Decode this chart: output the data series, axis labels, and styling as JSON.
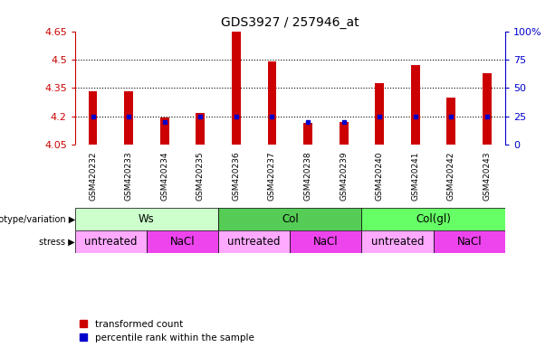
{
  "title": "GDS3927 / 257946_at",
  "samples": [
    "GSM420232",
    "GSM420233",
    "GSM420234",
    "GSM420235",
    "GSM420236",
    "GSM420237",
    "GSM420238",
    "GSM420239",
    "GSM420240",
    "GSM420241",
    "GSM420242",
    "GSM420243"
  ],
  "red_values": [
    4.335,
    4.335,
    4.195,
    4.22,
    4.65,
    4.49,
    4.168,
    4.172,
    4.375,
    4.47,
    4.3,
    4.43
  ],
  "blue_values": [
    25,
    25,
    20,
    25,
    25,
    25,
    20,
    20,
    25,
    25,
    25,
    25
  ],
  "ylim": [
    4.05,
    4.65
  ],
  "y_ticks": [
    4.05,
    4.2,
    4.35,
    4.5,
    4.65
  ],
  "right_tick_positions": [
    4.05,
    4.2,
    4.35,
    4.5,
    4.65
  ],
  "right_labels": [
    "0",
    "25",
    "50",
    "75",
    "100%"
  ],
  "dotted_lines": [
    4.2,
    4.35,
    4.5
  ],
  "bar_width": 0.25,
  "bar_bottom": 4.05,
  "genotype_groups": [
    {
      "label": "Ws",
      "start": 0,
      "end": 4,
      "color": "#ccffcc"
    },
    {
      "label": "Col",
      "start": 4,
      "end": 8,
      "color": "#55cc55"
    },
    {
      "label": "Col(gl)",
      "start": 8,
      "end": 12,
      "color": "#66ff66"
    }
  ],
  "stress_groups": [
    {
      "label": "untreated",
      "start": 0,
      "end": 2,
      "color": "#ffaaff"
    },
    {
      "label": "NaCl",
      "start": 2,
      "end": 4,
      "color": "#ee44ee"
    },
    {
      "label": "untreated",
      "start": 4,
      "end": 6,
      "color": "#ffaaff"
    },
    {
      "label": "NaCl",
      "start": 6,
      "end": 8,
      "color": "#ee44ee"
    },
    {
      "label": "untreated",
      "start": 8,
      "end": 10,
      "color": "#ffaaff"
    },
    {
      "label": "NaCl",
      "start": 10,
      "end": 12,
      "color": "#ee44ee"
    }
  ],
  "red_color": "#cc0000",
  "blue_color": "#0000cc",
  "axis_color_left": "#cc0000",
  "axis_color_right": "#0000cc",
  "bg_color": "#ffffff",
  "sample_bg_color": "#cccccc",
  "genotype_label": "genotype/variation",
  "stress_label": "stress",
  "legend_red": "transformed count",
  "legend_blue": "percentile rank within the sample"
}
